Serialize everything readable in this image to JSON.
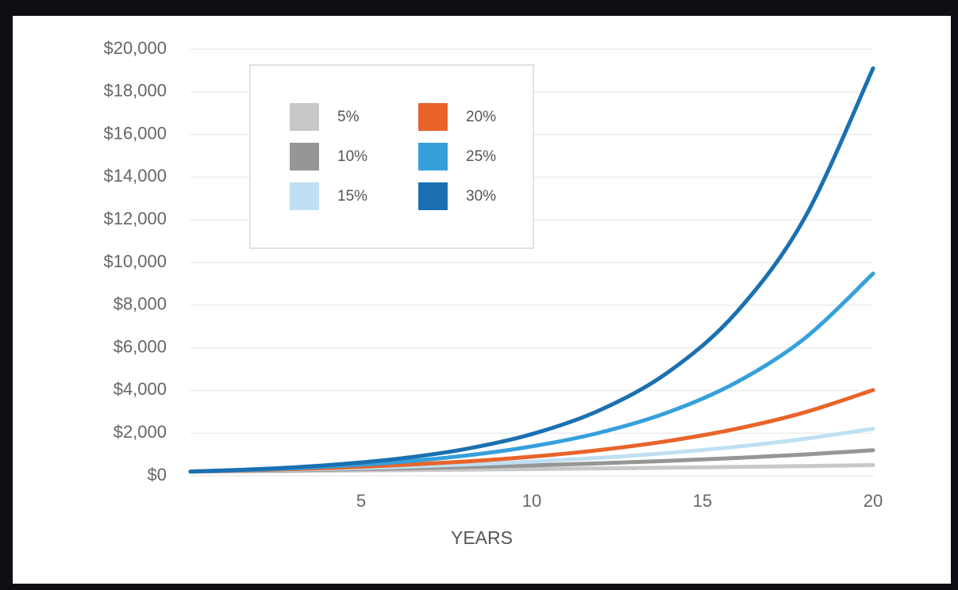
{
  "chart_data": {
    "type": "line",
    "x_label": "YEARS",
    "x": [
      0,
      2,
      4,
      6,
      8,
      10,
      12,
      14,
      16,
      18,
      20
    ],
    "xlim": [
      0,
      20
    ],
    "xticks": [
      5,
      10,
      15,
      20
    ],
    "ylim": [
      0,
      20000
    ],
    "yticks": [
      {
        "value": 0,
        "label": "$0"
      },
      {
        "value": 2000,
        "label": "$2,000"
      },
      {
        "value": 4000,
        "label": "$4,000"
      },
      {
        "value": 6000,
        "label": "$6,000"
      },
      {
        "value": 8000,
        "label": "$8,000"
      },
      {
        "value": 10000,
        "label": "$10,000"
      },
      {
        "value": 12000,
        "label": "$12,000"
      },
      {
        "value": 14000,
        "label": "$14,000"
      },
      {
        "value": 16000,
        "label": "$16,000"
      },
      {
        "value": 18000,
        "label": "$18,000"
      },
      {
        "value": 20000,
        "label": "$20,000"
      }
    ],
    "grid": true,
    "legend": "upper left",
    "series": [
      {
        "name": "5%",
        "color": "#c8c8c8",
        "values": [
          200,
          219,
          240,
          263,
          289,
          316,
          347,
          380,
          416,
          456,
          500
        ]
      },
      {
        "name": "10%",
        "color": "#969696",
        "values": [
          200,
          239,
          286,
          342,
          409,
          489,
          585,
          700,
          837,
          1001,
          1197
        ]
      },
      {
        "name": "15%",
        "color": "#bfe0f2",
        "values": [
          200,
          254,
          323,
          411,
          523,
          664,
          844,
          1073,
          1364,
          1734,
          2204
        ]
      },
      {
        "name": "20%",
        "color": "#e8642a",
        "values": [
          200,
          270,
          364,
          492,
          664,
          896,
          1210,
          1633,
          2205,
          2977,
          4020
        ]
      },
      {
        "name": "25%",
        "color": "#35a0dc",
        "values": [
          200,
          294,
          433,
          637,
          936,
          1377,
          2026,
          2980,
          4384,
          6448,
          9480
        ]
      },
      {
        "name": "30%",
        "color": "#1a70b0",
        "values": [
          200,
          315,
          498,
          785,
          1238,
          1954,
          3082,
          4862,
          7670,
          12100,
          19100
        ]
      }
    ]
  }
}
